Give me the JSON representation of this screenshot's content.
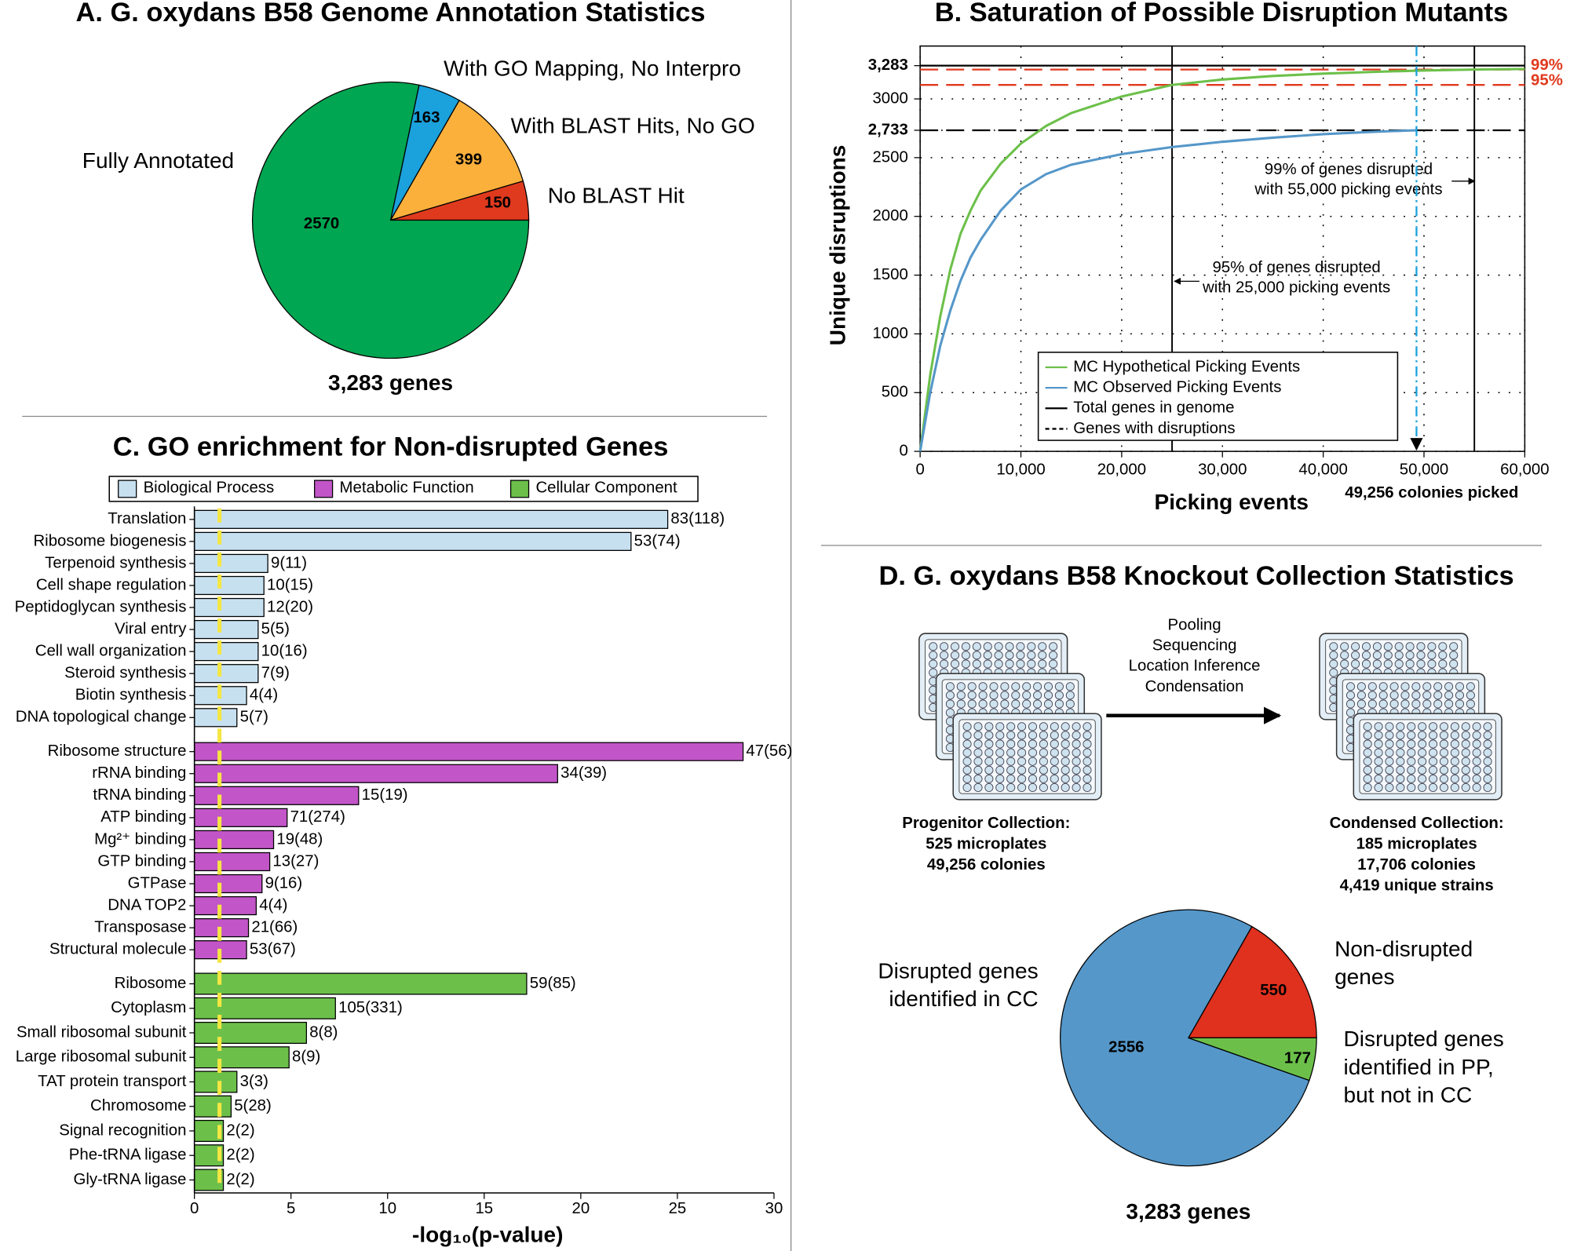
{
  "chart_data": [
    {
      "type": "pie",
      "title": "A. G. oxydans B58 Genome Annotation Statistics",
      "categories": [
        "No BLAST Hit",
        "With BLAST Hits, No GO",
        "With GO Mapping, No Interpro",
        "Fully Annotated"
      ],
      "values": [
        150,
        399,
        163,
        2570
      ],
      "colors": [
        "#e03a1e",
        "#fbb03b",
        "#1ba1dc",
        "#00a651"
      ],
      "footer": "3,283 genes"
    },
    {
      "type": "line",
      "title": "B. Saturation of Possible Disruption Mutants",
      "xlabel": "Picking events",
      "ylabel": "Unique disruptions",
      "xlim": [
        0,
        60000
      ],
      "ylim": [
        0,
        3450
      ],
      "xticks": [
        0,
        {
          "value": 10000,
          "label": "10,000"
        },
        {
          "value": 20000,
          "label": "20,000"
        },
        {
          "value": 30000,
          "label": "30,000"
        },
        {
          "value": 40000,
          "label": "40,000"
        },
        {
          "value": 50000,
          "label": "50,000"
        },
        {
          "value": 60000,
          "label": "60,000"
        }
      ],
      "yticks": [
        0,
        500,
        1000,
        1500,
        2000,
        2500,
        {
          "value": 2733,
          "label": "2,733"
        },
        3000,
        {
          "value": 3283,
          "label": "3,283"
        }
      ],
      "grid": true,
      "legend": "lower center",
      "series": [
        {
          "name": "MC Hypothetical Picking Events",
          "color": "#6cc04a",
          "x": [
            0,
            1000,
            2000,
            3000,
            4000,
            5000,
            6000,
            8000,
            10000,
            12500,
            15000,
            20000,
            25000,
            30000,
            35000,
            40000,
            45000,
            50000,
            55000,
            60000
          ],
          "values": [
            0,
            650,
            1150,
            1550,
            1850,
            2050,
            2220,
            2450,
            2620,
            2770,
            2880,
            3020,
            3119,
            3165,
            3195,
            3215,
            3230,
            3242,
            3250,
            3255
          ]
        },
        {
          "name": "MC Observed Picking Events",
          "color": "#5597c9",
          "x": [
            0,
            1000,
            2000,
            3000,
            4000,
            5000,
            6000,
            8000,
            10000,
            12500,
            15000,
            20000,
            25000,
            30000,
            35000,
            40000,
            45000,
            49256
          ],
          "values": [
            0,
            500,
            900,
            1200,
            1450,
            1650,
            1800,
            2050,
            2230,
            2360,
            2440,
            2530,
            2590,
            2635,
            2670,
            2700,
            2720,
            2733
          ]
        }
      ],
      "reference_lines": [
        {
          "name": "Total genes in genome",
          "style": "solid",
          "y": 3283
        },
        {
          "name": "Genes with disruptions",
          "style": "dashed",
          "y": 2733
        }
      ],
      "thresholds": [
        {
          "label": "99%",
          "y": 3250,
          "x": 55000,
          "note": [
            "99% of genes disrupted",
            "with 55,000 picking events"
          ]
        },
        {
          "label": "95%",
          "y": 3119,
          "x": 25000,
          "note": [
            "95% of genes disrupted",
            "with 25,000 picking events"
          ]
        }
      ],
      "threshold_color": "#e03a1e",
      "marker": {
        "x": 49256,
        "label": "49,256 colonies picked",
        "color": "#1ba1dc"
      }
    },
    {
      "type": "bar",
      "orientation": "horizontal",
      "title": "C. GO enrichment for Non-disrupted Genes",
      "xlabel": "-log₁₀(p-value)",
      "xlim": [
        0,
        30
      ],
      "xticks": [
        0,
        5,
        10,
        15,
        20,
        25,
        30
      ],
      "threshold": 1.3,
      "threshold_color": "#f5e642",
      "series": [
        {
          "name": "Biological Process",
          "color": "#c6e0f0",
          "categories": [
            "Translation",
            "Ribosome biogenesis",
            "Terpenoid synthesis",
            "Cell shape regulation",
            "Peptidoglycan synthesis",
            "Viral entry",
            "Cell wall organization",
            "Steroid synthesis",
            "Biotin synthesis",
            "DNA topological change"
          ],
          "values": [
            24.5,
            22.6,
            3.8,
            3.6,
            3.6,
            3.3,
            3.3,
            3.3,
            2.7,
            2.2
          ],
          "bar_labels": [
            "83(118)",
            "53(74)",
            "9(11)",
            "10(15)",
            "12(20)",
            "5(5)",
            "10(16)",
            "7(9)",
            "4(4)",
            "5(7)"
          ]
        },
        {
          "name": "Metabolic Function",
          "color": "#c255c8",
          "categories": [
            "Ribosome structure",
            "rRNA binding",
            "tRNA binding",
            "ATP binding",
            "Mg²⁺ binding",
            "GTP binding",
            "GTPase",
            "DNA TOP2",
            "Transposase",
            "Structural molecule"
          ],
          "values": [
            28.4,
            18.8,
            8.5,
            4.8,
            4.1,
            3.9,
            3.5,
            3.2,
            2.8,
            2.7
          ],
          "bar_labels": [
            "47(56)",
            "34(39)",
            "15(19)",
            "71(274)",
            "19(48)",
            "13(27)",
            "9(16)",
            "4(4)",
            "21(66)",
            "53(67)"
          ]
        },
        {
          "name": "Cellular Component",
          "color": "#6cc04a",
          "categories": [
            "Ribosome",
            "Cytoplasm",
            "Small ribosomal subunit",
            "Large ribosomal subunit",
            "TAT protein transport",
            "Chromosome",
            "Signal recognition",
            "Phe-tRNA ligase",
            "Gly-tRNA ligase"
          ],
          "values": [
            17.2,
            7.3,
            5.8,
            4.9,
            2.2,
            1.9,
            1.5,
            1.5,
            1.5
          ],
          "bar_labels": [
            "59(85)",
            "105(331)",
            "8(8)",
            "8(9)",
            "3(3)",
            "5(28)",
            "2(2)",
            "2(2)",
            "2(2)"
          ]
        }
      ]
    },
    {
      "type": "pie",
      "title": "D. G. oxydans B58 Knockout Collection Statistics",
      "steps": [
        "Pooling",
        "Sequencing",
        "Location Inference",
        "Condensation"
      ],
      "collections": [
        [
          "Progenitor Collection:",
          "525 microplates",
          "49,256 colonies"
        ],
        [
          "Condensed Collection:",
          "185 microplates",
          "17,706 colonies",
          "4,419 unique strains"
        ]
      ],
      "categories": [
        "Non-disrupted\ngenes",
        "Disrupted genes\nidentified in CC",
        "Disrupted genes\nidentified in PP,\nbut not in CC"
      ],
      "values": [
        550,
        2556,
        177
      ],
      "colors": [
        "#e0301e",
        "#5597c9",
        "#6cc04a"
      ],
      "footer": "3,283 genes"
    }
  ]
}
